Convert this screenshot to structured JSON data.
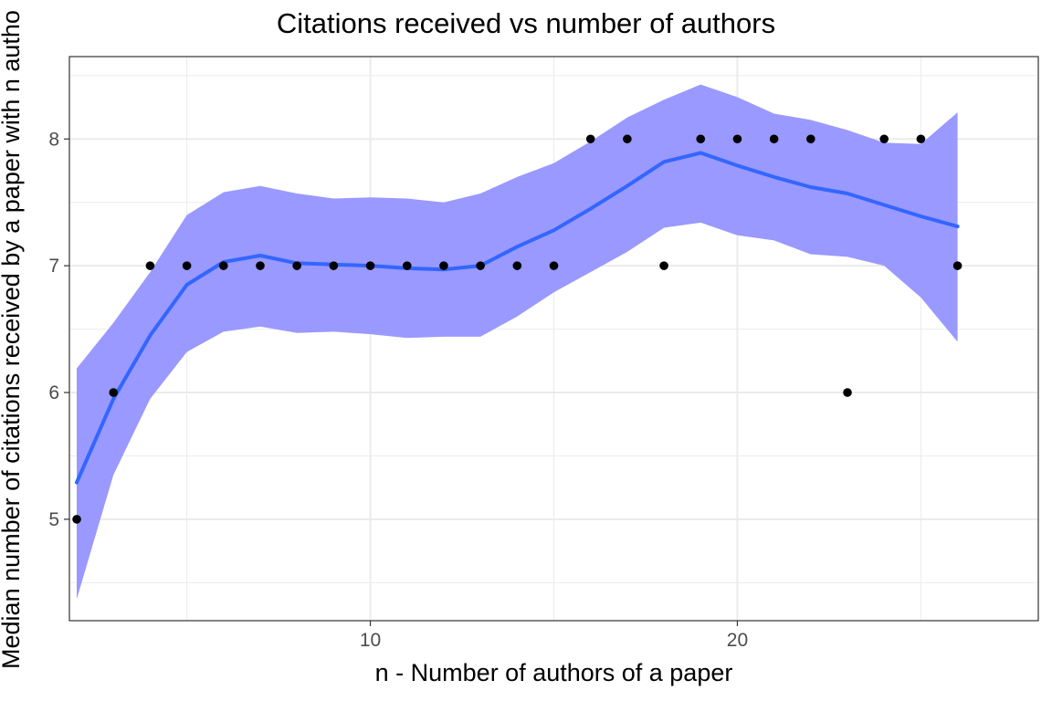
{
  "chart_data": {
    "type": "scatter",
    "title": "Citations received vs number of authors",
    "xlabel": "n - Number of authors of a paper",
    "ylabel": "Median number of citations received by a paper with n autho",
    "xlim": [
      1.8,
      28.2
    ],
    "ylim": [
      4.2,
      8.65
    ],
    "x_ticks": [
      10,
      20
    ],
    "y_ticks": [
      5,
      6,
      7,
      8
    ],
    "grid": true,
    "points": [
      {
        "x": 2,
        "y": 5
      },
      {
        "x": 3,
        "y": 6
      },
      {
        "x": 4,
        "y": 7
      },
      {
        "x": 5,
        "y": 7
      },
      {
        "x": 6,
        "y": 7
      },
      {
        "x": 7,
        "y": 7
      },
      {
        "x": 8,
        "y": 7
      },
      {
        "x": 9,
        "y": 7
      },
      {
        "x": 10,
        "y": 7
      },
      {
        "x": 11,
        "y": 7
      },
      {
        "x": 12,
        "y": 7
      },
      {
        "x": 13,
        "y": 7
      },
      {
        "x": 14,
        "y": 7
      },
      {
        "x": 15,
        "y": 7
      },
      {
        "x": 16,
        "y": 8
      },
      {
        "x": 17,
        "y": 8
      },
      {
        "x": 18,
        "y": 7
      },
      {
        "x": 19,
        "y": 8
      },
      {
        "x": 20,
        "y": 8
      },
      {
        "x": 21,
        "y": 8
      },
      {
        "x": 22,
        "y": 8
      },
      {
        "x": 23,
        "y": 6
      },
      {
        "x": 24,
        "y": 8
      },
      {
        "x": 25,
        "y": 8
      },
      {
        "x": 26,
        "y": 7
      }
    ],
    "smooth": {
      "x": [
        2,
        3,
        4,
        5,
        6,
        7,
        8,
        9,
        10,
        11,
        12,
        13,
        14,
        15,
        16,
        17,
        18,
        19,
        20,
        21,
        22,
        23,
        24,
        25,
        26
      ],
      "y": [
        5.29,
        5.95,
        6.45,
        6.85,
        7.03,
        7.08,
        7.02,
        7.01,
        7.0,
        6.98,
        6.97,
        7.0,
        7.15,
        7.28,
        7.45,
        7.63,
        7.82,
        7.89,
        7.79,
        7.7,
        7.62,
        7.57,
        7.48,
        7.39,
        7.31
      ],
      "lower": [
        4.37,
        5.35,
        5.95,
        6.32,
        6.48,
        6.52,
        6.47,
        6.48,
        6.46,
        6.43,
        6.44,
        6.44,
        6.6,
        6.79,
        6.95,
        7.11,
        7.3,
        7.34,
        7.24,
        7.2,
        7.09,
        7.07,
        7.0,
        6.75,
        6.4
      ],
      "upper": [
        6.19,
        6.55,
        6.95,
        7.4,
        7.58,
        7.63,
        7.57,
        7.53,
        7.54,
        7.53,
        7.5,
        7.57,
        7.7,
        7.81,
        7.98,
        8.17,
        8.31,
        8.43,
        8.33,
        8.2,
        8.15,
        8.07,
        7.97,
        7.96,
        8.21
      ]
    },
    "colors": {
      "ribbon": "#9999ff",
      "line": "#3366ff",
      "points": "#000000",
      "grid": "#ebebeb",
      "panel_border": "#333333"
    }
  }
}
